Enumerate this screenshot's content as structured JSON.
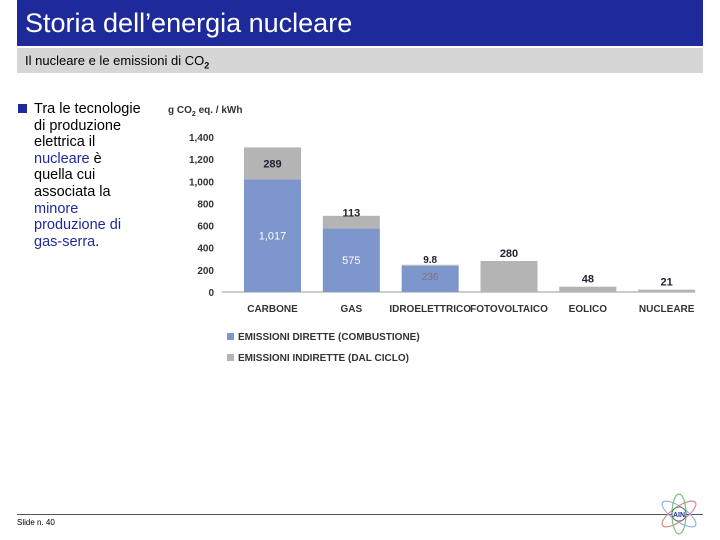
{
  "header": {
    "title": "Storia dell’energia nucleare",
    "subtitle_main": "Il nucleare e le emissioni di CO",
    "subtitle_sub": "2"
  },
  "body": {
    "part1": "Tra le tecnologie di produzione elettrica il ",
    "hl1": "nucleare",
    "part2": " è quella cui associata la ",
    "hl2": "minore produzione di gas-serra",
    "part3": "."
  },
  "footer": {
    "slide_label": "Slide n. 40"
  },
  "logo": {
    "text": "AIN"
  },
  "colors": {
    "title_bg": "#1f2a9a",
    "direct": "#7d96cc",
    "indirect": "#b4b4b4",
    "subtitle_bg": "#d6d6d6"
  },
  "chart_data": {
    "type": "bar",
    "stacked": true,
    "ylabel_main": "g CO",
    "ylabel_sub": "2",
    "ylabel_rest": " eq. / kWh",
    "ylim": [
      0,
      1400
    ],
    "yticks": [
      0,
      200,
      400,
      600,
      800,
      1000,
      1200,
      1400
    ],
    "ytick_labels": [
      "0",
      "200",
      "400",
      "600",
      "800",
      "1,000",
      "1,200",
      "1,400"
    ],
    "categories": [
      "CARBONE",
      "GAS",
      "IDROELETTRICO",
      "FOTOVOLTAICO",
      "EOLICO",
      "NUCLEARE"
    ],
    "series": [
      {
        "name": "EMISSIONI DIRETTE (COMBUSTIONE)",
        "values": [
          1017,
          575,
          236,
          0,
          0,
          0
        ],
        "labels": [
          "1,017",
          "575",
          "236",
          "",
          "",
          ""
        ]
      },
      {
        "name": "EMISSIONI INDIRETTE (DAL CICLO)",
        "values": [
          289,
          113,
          9.8,
          280,
          48,
          21
        ],
        "labels": [
          "289",
          "113",
          "9.8",
          "280",
          "48",
          "21"
        ]
      }
    ]
  }
}
